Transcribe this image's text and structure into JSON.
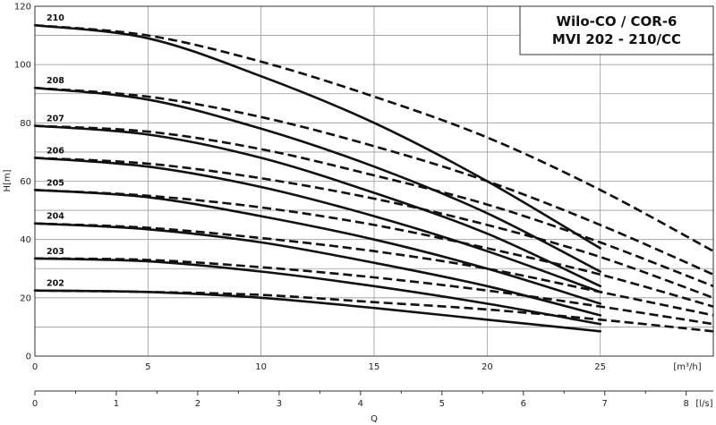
{
  "chart_data": {
    "type": "line",
    "title": [
      "Wilo-CO / COR-6",
      "MVI 202 - 210/CC"
    ],
    "ylabel": "H[m]",
    "xlabel": "Q",
    "x_unit_primary": "[m³/h]",
    "x_unit_secondary": "[l/s]",
    "xlim": [
      0,
      30
    ],
    "ylim": [
      0,
      120
    ],
    "xticks": [
      "0",
      "5",
      "10",
      "15",
      "20",
      "25"
    ],
    "yticks": [
      "0",
      "20",
      "40",
      "60",
      "80",
      "100",
      "120"
    ],
    "x2lim": [
      0,
      8.3333
    ],
    "x2ticks": [
      "0",
      "1",
      "2",
      "3",
      "4",
      "5",
      "6",
      "7",
      "8"
    ],
    "grid": true,
    "series": [
      {
        "name": "210",
        "solid": {
          "x": [
            0,
            5,
            10,
            15,
            20,
            25
          ],
          "y": [
            113.5,
            109,
            96,
            80,
            60,
            37
          ]
        },
        "dashed": {
          "x": [
            0,
            5,
            10,
            15,
            20,
            25,
            30
          ],
          "y": [
            113.5,
            110,
            101,
            89,
            75,
            57,
            36
          ]
        }
      },
      {
        "name": "208",
        "solid": {
          "x": [
            0,
            5,
            10,
            15,
            20,
            25
          ],
          "y": [
            92,
            88,
            78,
            65,
            49,
            29
          ]
        },
        "dashed": {
          "x": [
            0,
            5,
            10,
            15,
            20,
            25,
            30
          ],
          "y": [
            92,
            89,
            82,
            72,
            60,
            45,
            28
          ]
        }
      },
      {
        "name": "207",
        "solid": {
          "x": [
            0,
            5,
            10,
            15,
            20,
            25
          ],
          "y": [
            79,
            76,
            68,
            56,
            42,
            24
          ]
        },
        "dashed": {
          "x": [
            0,
            5,
            10,
            15,
            20,
            25,
            30
          ],
          "y": [
            79,
            77,
            71,
            62,
            52,
            39,
            24
          ]
        }
      },
      {
        "name": "206",
        "solid": {
          "x": [
            0,
            5,
            10,
            15,
            20,
            25
          ],
          "y": [
            68,
            65,
            58,
            48,
            36,
            22
          ]
        },
        "dashed": {
          "x": [
            0,
            5,
            10,
            15,
            20,
            25,
            30
          ],
          "y": [
            68,
            66,
            61,
            54,
            45,
            34,
            20
          ]
        }
      },
      {
        "name": "205",
        "solid": {
          "x": [
            0,
            5,
            10,
            15,
            20,
            25
          ],
          "y": [
            57,
            54.5,
            48,
            40,
            30,
            18
          ]
        },
        "dashed": {
          "x": [
            0,
            5,
            10,
            15,
            20,
            25,
            30
          ],
          "y": [
            57,
            55,
            51,
            45,
            37,
            28,
            17
          ]
        }
      },
      {
        "name": "204",
        "solid": {
          "x": [
            0,
            5,
            10,
            15,
            20,
            25
          ],
          "y": [
            45.5,
            43.5,
            39,
            32,
            24,
            14
          ]
        },
        "dashed": {
          "x": [
            0,
            5,
            10,
            15,
            20,
            25,
            30
          ],
          "y": [
            45.5,
            44,
            40.5,
            36,
            30,
            22,
            14
          ]
        }
      },
      {
        "name": "203",
        "solid": {
          "x": [
            0,
            5,
            10,
            15,
            20,
            25
          ],
          "y": [
            33.5,
            32.5,
            29,
            24,
            18,
            11
          ]
        },
        "dashed": {
          "x": [
            0,
            5,
            10,
            15,
            20,
            25,
            30
          ],
          "y": [
            33.5,
            33,
            30.5,
            27,
            22.5,
            17,
            11
          ]
        }
      },
      {
        "name": "202",
        "solid": {
          "x": [
            0,
            5,
            10,
            15,
            20,
            25
          ],
          "y": [
            22.5,
            22,
            20,
            16.5,
            12.5,
            8.5
          ]
        },
        "dashed": {
          "x": [
            0,
            5,
            10,
            15,
            20,
            25,
            30
          ],
          "y": [
            22.5,
            22,
            21,
            18.5,
            16,
            12.5,
            8.5
          ]
        }
      }
    ]
  }
}
